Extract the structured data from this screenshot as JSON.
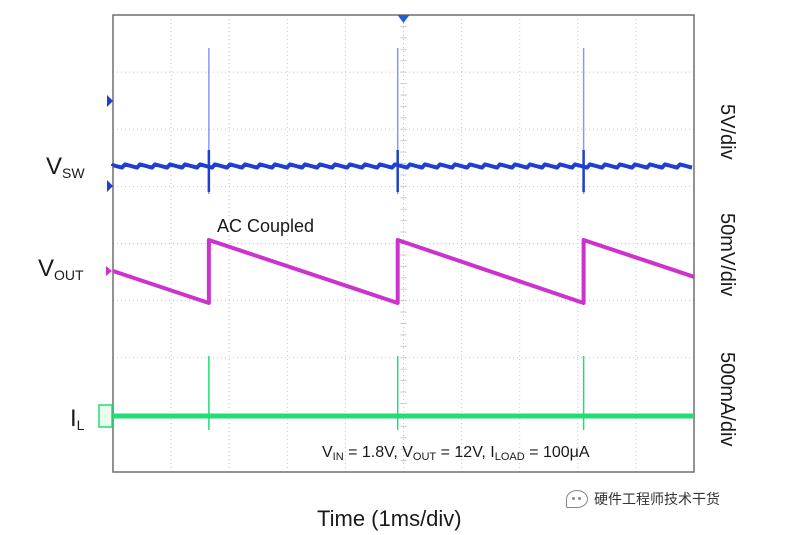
{
  "chart_data": {
    "type": "line",
    "title": "",
    "xlabel": "Time (1ms/div)",
    "x_unit": "ms",
    "x_range": [
      0,
      10
    ],
    "grid": true,
    "annotation": "AC Coupled",
    "conditions": {
      "vin_symbol": "V",
      "vin_sub": "IN",
      "vin_value": " = 1.8V, ",
      "vout_symbol": "V",
      "vout_sub": "OUT",
      "vout_value": " = 12V, ",
      "iload_symbol": "I",
      "iload_sub": "LOAD",
      "iload_value": " = 100μA"
    },
    "series": [
      {
        "name_symbol": "V",
        "name_sub": "SW",
        "scale": "5V/div",
        "color": "#1f3fd0",
        "marker": "1",
        "spike_times_ms": [
          1.65,
          4.9,
          8.1
        ]
      },
      {
        "name_symbol": "V",
        "name_sub": "OUT",
        "scale": "50mV/div",
        "color": "#cc33cc",
        "marker": "2",
        "ripple_peak_to_peak_mV": 60,
        "ripple_events_ms": [
          1.65,
          4.9,
          8.1
        ]
      },
      {
        "name_symbol": "I",
        "name_sub": "L",
        "scale": "500mA/div",
        "color": "#22dd77",
        "marker": "4",
        "spike_times_ms": [
          1.65,
          4.9,
          8.1
        ]
      }
    ]
  },
  "watermark": "硬件工程师技术干货",
  "colors": {
    "grid": "#c8c8c8",
    "frame": "#6f6f6f",
    "trigger": "#1f5fd0"
  }
}
